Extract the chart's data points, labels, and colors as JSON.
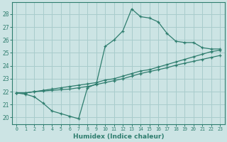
{
  "xlabel": "Humidex (Indice chaleur)",
  "ylabel": "",
  "bg_color": "#cce4e4",
  "grid_color": "#a8cccc",
  "line_color": "#2e7d6e",
  "xlim": [
    -0.5,
    23.5
  ],
  "ylim": [
    19.5,
    28.9
  ],
  "xticks": [
    0,
    1,
    2,
    3,
    4,
    5,
    6,
    7,
    8,
    9,
    10,
    11,
    12,
    13,
    14,
    15,
    16,
    17,
    18,
    19,
    20,
    21,
    22,
    23
  ],
  "yticks": [
    20,
    21,
    22,
    23,
    24,
    25,
    26,
    27,
    28
  ],
  "line1_x": [
    0,
    1,
    2,
    3,
    4,
    5,
    6,
    7,
    8,
    9,
    10,
    11,
    12,
    13,
    14,
    15,
    16,
    17,
    18,
    19,
    20,
    21,
    22,
    23
  ],
  "line1_y": [
    21.9,
    21.8,
    21.6,
    21.1,
    20.5,
    20.3,
    20.1,
    19.9,
    22.3,
    22.6,
    25.5,
    26.0,
    26.7,
    28.4,
    27.8,
    27.7,
    27.4,
    26.5,
    25.9,
    25.8,
    25.8,
    25.4,
    25.3,
    25.3
  ],
  "line2_x": [
    0,
    1,
    2,
    3,
    4,
    5,
    6,
    7,
    8,
    9,
    10,
    11,
    12,
    13,
    14,
    15,
    16,
    17,
    18,
    19,
    20,
    21,
    22,
    23
  ],
  "line2_y": [
    21.9,
    21.9,
    22.0,
    22.1,
    22.2,
    22.3,
    22.4,
    22.5,
    22.6,
    22.7,
    22.9,
    23.0,
    23.2,
    23.4,
    23.6,
    23.7,
    23.9,
    24.1,
    24.3,
    24.5,
    24.7,
    24.9,
    25.1,
    25.2
  ],
  "line3_x": [
    0,
    1,
    2,
    3,
    4,
    5,
    6,
    7,
    8,
    9,
    10,
    11,
    12,
    13,
    14,
    15,
    16,
    17,
    18,
    19,
    20,
    21,
    22,
    23
  ],
  "line3_y": [
    21.9,
    21.9,
    22.0,
    22.05,
    22.1,
    22.15,
    22.2,
    22.3,
    22.4,
    22.55,
    22.7,
    22.85,
    23.0,
    23.2,
    23.4,
    23.55,
    23.7,
    23.85,
    24.05,
    24.2,
    24.35,
    24.5,
    24.65,
    24.8
  ],
  "xtick_fontsize": 4.8,
  "ytick_fontsize": 5.5,
  "xlabel_fontsize": 6.5
}
